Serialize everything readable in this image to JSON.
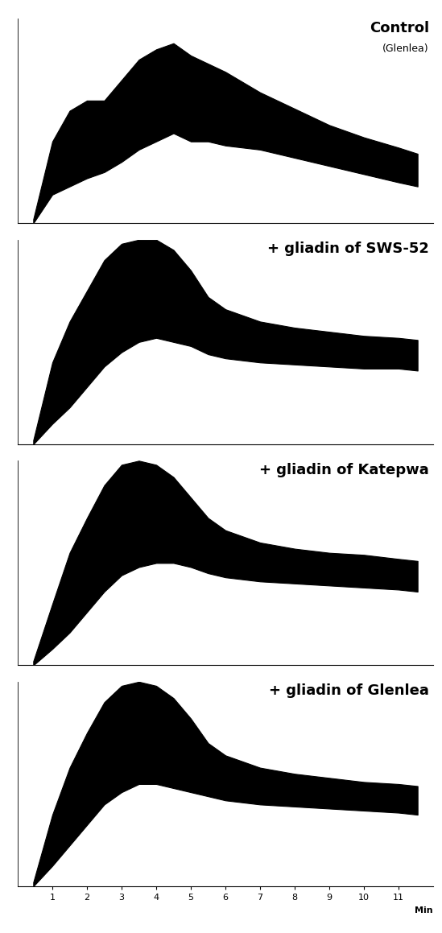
{
  "chart_data": [
    {
      "type": "area",
      "title": "Control",
      "subtitle": "(Glenlea)",
      "color": "#000000",
      "x": [
        0.45,
        1,
        1.5,
        2,
        2.5,
        3,
        3.5,
        4,
        4.5,
        5,
        5.5,
        6,
        7,
        8,
        9,
        10,
        11,
        11.55
      ],
      "high": [
        2,
        40,
        55,
        60,
        60,
        70,
        80,
        85,
        88,
        82,
        78,
        74,
        64,
        56,
        48,
        42,
        37,
        34
      ],
      "low": [
        0,
        14,
        18,
        22,
        25,
        30,
        36,
        40,
        44,
        40,
        40,
        38,
        36,
        32,
        28,
        24,
        20,
        18
      ],
      "xlim": [
        0,
        12
      ],
      "xticks": [
        1,
        2,
        3,
        4,
        5,
        6,
        7,
        8,
        9,
        10,
        11
      ],
      "ylim": [
        0,
        100
      ],
      "tick_labels": false
    },
    {
      "type": "area",
      "title": "+ gliadin of SWS-52",
      "color": "#000000",
      "x": [
        0.45,
        1,
        1.5,
        2,
        2.5,
        3,
        3.5,
        4,
        4.5,
        5,
        5.5,
        6,
        7,
        8,
        9,
        10,
        11,
        11.55
      ],
      "high": [
        2,
        40,
        60,
        75,
        90,
        98,
        100,
        100,
        95,
        85,
        72,
        66,
        60,
        57,
        55,
        53,
        52,
        51
      ],
      "low": [
        0,
        10,
        18,
        28,
        38,
        45,
        50,
        52,
        50,
        48,
        44,
        42,
        40,
        39,
        38,
        37,
        37,
        36
      ],
      "xlim": [
        0,
        12
      ],
      "xticks": [
        1,
        2,
        3,
        4,
        5,
        6,
        7,
        8,
        9,
        10,
        11
      ],
      "ylim": [
        0,
        100
      ],
      "tick_labels": false
    },
    {
      "type": "area",
      "title": "+ gliadin of Katepwa",
      "color": "#000000",
      "x": [
        0.45,
        1,
        1.5,
        2,
        2.5,
        3,
        3.5,
        4,
        4.5,
        5,
        5.5,
        6,
        7,
        8,
        9,
        10,
        11,
        11.55
      ],
      "high": [
        2,
        30,
        55,
        72,
        88,
        98,
        100,
        98,
        92,
        82,
        72,
        66,
        60,
        57,
        55,
        54,
        52,
        51
      ],
      "low": [
        0,
        8,
        16,
        26,
        36,
        44,
        48,
        50,
        50,
        48,
        45,
        43,
        41,
        40,
        39,
        38,
        37,
        36
      ],
      "xlim": [
        0,
        12
      ],
      "xticks": [
        1,
        2,
        3,
        4,
        5,
        6,
        7,
        8,
        9,
        10,
        11
      ],
      "ylim": [
        0,
        100
      ],
      "tick_labels": false
    },
    {
      "type": "area",
      "title": "+ gliadin of Glenlea",
      "color": "#000000",
      "x_label": "Min",
      "x": [
        0.45,
        1,
        1.5,
        2,
        2.5,
        3,
        3.5,
        4,
        4.5,
        5,
        5.5,
        6,
        7,
        8,
        9,
        10,
        11,
        11.55
      ],
      "high": [
        2,
        35,
        58,
        75,
        90,
        98,
        100,
        98,
        92,
        82,
        70,
        64,
        58,
        55,
        53,
        51,
        50,
        49
      ],
      "low": [
        0,
        10,
        20,
        30,
        40,
        46,
        50,
        50,
        48,
        46,
        44,
        42,
        40,
        39,
        38,
        37,
        36,
        35
      ],
      "xlim": [
        0,
        12
      ],
      "xticks": [
        1,
        2,
        3,
        4,
        5,
        6,
        7,
        8,
        9,
        10,
        11
      ],
      "ylim": [
        0,
        100
      ],
      "tick_labels": "x"
    }
  ]
}
